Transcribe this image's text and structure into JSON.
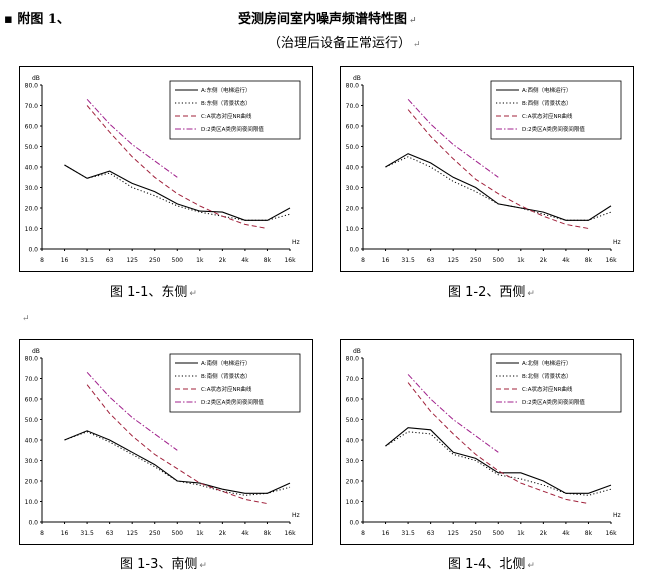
{
  "header": {
    "bullet": "▪",
    "left_label": "附图 1、",
    "title": "受测房间室内噪声频谱特性图",
    "subtitle": "（治理后设备正常运行）",
    "return_mark": "↵"
  },
  "colors": {
    "series_a": "#000000",
    "series_b": "#000000",
    "series_c": "#a0203a",
    "series_d": "#a0208c"
  },
  "chart_data": [
    {
      "type": "line",
      "caption": "图 1-1、东侧",
      "ylabel": "dB",
      "xlabel": "Hz",
      "ylim": [
        0,
        80
      ],
      "yticks": [
        "0.0",
        "10.0",
        "20.0",
        "30.0",
        "40.0",
        "50.0",
        "60.0",
        "70.0",
        "80.0"
      ],
      "categories": [
        "8",
        "16",
        "31.5",
        "63",
        "125",
        "250",
        "500",
        "1k",
        "2k",
        "4k",
        "8k",
        "16k"
      ],
      "series": [
        {
          "name": "A:东侧（电梯运行）",
          "dash": "solid",
          "values": [
            null,
            41,
            34.5,
            38,
            32,
            28,
            22,
            18.5,
            18,
            14,
            14,
            20
          ]
        },
        {
          "name": "B:东侧（背景状态）",
          "dash": "dot",
          "values": [
            null,
            41,
            34.5,
            37,
            30,
            26,
            21,
            18,
            16,
            14,
            14,
            17
          ]
        },
        {
          "name": "C:A状态对应NR曲线",
          "dash": "dash",
          "values": [
            null,
            null,
            70,
            57,
            45,
            35,
            27,
            21,
            16,
            12,
            10,
            null
          ]
        },
        {
          "name": "D:2类区A类房间夜间限值",
          "dash": "dashdot",
          "values": [
            null,
            null,
            73,
            61,
            51,
            43,
            35,
            null,
            null,
            null,
            null,
            null
          ]
        }
      ]
    },
    {
      "type": "line",
      "caption": "图 1-2、西侧",
      "ylabel": "dB",
      "xlabel": "Hz",
      "ylim": [
        0,
        80
      ],
      "yticks": [
        "0.0",
        "10.0",
        "20.0",
        "30.0",
        "40.0",
        "50.0",
        "60.0",
        "70.0",
        "80.0"
      ],
      "categories": [
        "8",
        "16",
        "31.5",
        "63",
        "125",
        "250",
        "500",
        "1k",
        "2k",
        "4k",
        "8k",
        "16k"
      ],
      "series": [
        {
          "name": "A:西侧（电梯运行）",
          "dash": "solid",
          "values": [
            null,
            40,
            46.5,
            42,
            35,
            30,
            22,
            20,
            18,
            14,
            14,
            21
          ]
        },
        {
          "name": "B:西侧（背景状态）",
          "dash": "dot",
          "values": [
            null,
            40,
            45,
            40,
            33,
            28,
            22,
            20,
            17,
            14,
            14,
            18
          ]
        },
        {
          "name": "C:A状态对应NR曲线",
          "dash": "dash",
          "values": [
            null,
            null,
            68,
            55,
            44,
            34,
            27,
            21,
            16,
            12,
            10,
            null
          ]
        },
        {
          "name": "D:2类区A类房间夜间限值",
          "dash": "dashdot",
          "values": [
            null,
            null,
            73,
            61,
            51,
            43,
            35,
            null,
            null,
            null,
            null,
            null
          ]
        }
      ]
    },
    {
      "type": "line",
      "caption": "图 1-3、南侧",
      "ylabel": "dB",
      "xlabel": "Hz",
      "ylim": [
        0,
        80
      ],
      "yticks": [
        "0.0",
        "10.0",
        "20.0",
        "30.0",
        "40.0",
        "50.0",
        "60.0",
        "70.0",
        "80.0"
      ],
      "categories": [
        "8",
        "16",
        "31.5",
        "63",
        "125",
        "250",
        "500",
        "1k",
        "2k",
        "4k",
        "8k",
        "16k"
      ],
      "series": [
        {
          "name": "A:南侧（电梯运行）",
          "dash": "solid",
          "values": [
            null,
            40,
            44.5,
            40,
            34,
            28,
            20,
            19,
            16,
            14,
            14,
            19
          ]
        },
        {
          "name": "B:南侧（背景状态）",
          "dash": "dot",
          "values": [
            null,
            40,
            44,
            39,
            33,
            27,
            20,
            18,
            15,
            13,
            14,
            17
          ]
        },
        {
          "name": "C:A状态对应NR曲线",
          "dash": "dash",
          "values": [
            null,
            null,
            67,
            53,
            42,
            33,
            26,
            19,
            15,
            11,
            9,
            null
          ]
        },
        {
          "name": "D:2类区A类房间夜间限值",
          "dash": "dashdot",
          "values": [
            null,
            null,
            73,
            61,
            51,
            43,
            35,
            null,
            null,
            null,
            null,
            null
          ]
        }
      ]
    },
    {
      "type": "line",
      "caption": "图 1-4、北侧",
      "ylabel": "dB",
      "xlabel": "Hz",
      "ylim": [
        0,
        80
      ],
      "yticks": [
        "0.0",
        "10.0",
        "20.0",
        "30.0",
        "40.0",
        "50.0",
        "60.0",
        "70.0",
        "80.0"
      ],
      "categories": [
        "8",
        "16",
        "31.5",
        "63",
        "125",
        "250",
        "500",
        "1k",
        "2k",
        "4k",
        "8k",
        "16k"
      ],
      "series": [
        {
          "name": "A:北侧（电梯运行）",
          "dash": "solid",
          "values": [
            null,
            37,
            46,
            45,
            34,
            31,
            24,
            24,
            20,
            14,
            14,
            18
          ]
        },
        {
          "name": "B:北侧（背景状态）",
          "dash": "dot",
          "values": [
            null,
            37,
            44,
            43,
            33,
            30,
            23,
            21,
            18,
            14,
            13,
            16
          ]
        },
        {
          "name": "C:A状态对应NR曲线",
          "dash": "dash",
          "values": [
            null,
            null,
            68,
            54,
            43,
            33,
            25,
            19,
            15,
            11,
            9,
            null
          ]
        },
        {
          "name": "D:2类区A类房间夜间限值",
          "dash": "dashdot",
          "values": [
            null,
            null,
            72,
            60,
            50,
            42,
            34,
            null,
            null,
            null,
            null,
            null
          ]
        }
      ]
    }
  ]
}
